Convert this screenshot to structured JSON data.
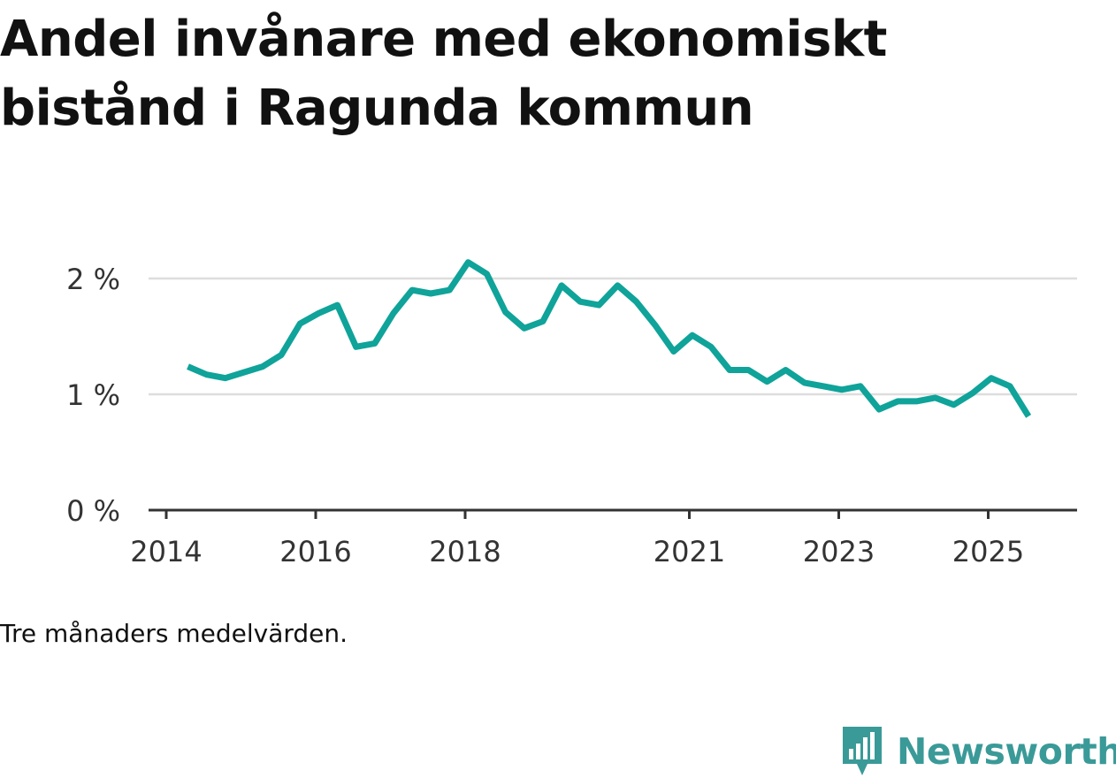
{
  "title": "Andel invånare med ekonomiskt bistånd i Ragunda kommun",
  "note": "Tre månaders medelvärden.",
  "brand": {
    "name": "Newsworthy",
    "icon": "newsworthy-logo-icon",
    "color": "#3a9a98"
  },
  "colors": {
    "line": "#0fa39a",
    "grid": "#dddddd",
    "axis": "#333333"
  },
  "chart_data": {
    "type": "line",
    "title": "Andel invånare med ekonomiskt bistånd i Ragunda kommun",
    "xlabel": "",
    "ylabel": "",
    "xlim": [
      2014,
      2026.17
    ],
    "ylim": [
      0,
      2
    ],
    "yticks": [
      {
        "value": 0,
        "label": "0 %"
      },
      {
        "value": 1,
        "label": "1 %"
      },
      {
        "value": 2,
        "label": "2 %"
      }
    ],
    "xticks": [
      {
        "value": 2014,
        "label": "2014"
      },
      {
        "value": 2016,
        "label": "2016"
      },
      {
        "value": 2018,
        "label": "2018"
      },
      {
        "value": 2021,
        "label": "2021"
      },
      {
        "value": 2023,
        "label": "2023"
      },
      {
        "value": 2025,
        "label": "2025"
      }
    ],
    "series": [
      {
        "name": "Andel invånare med ekonomiskt bistånd",
        "x": [
          2014.29,
          2014.54,
          2014.79,
          2015.04,
          2015.29,
          2015.54,
          2015.79,
          2016.04,
          2016.29,
          2016.54,
          2016.79,
          2017.04,
          2017.29,
          2017.54,
          2017.79,
          2018.04,
          2018.29,
          2018.54,
          2018.79,
          2019.04,
          2019.29,
          2019.54,
          2019.79,
          2020.04,
          2020.29,
          2020.54,
          2020.79,
          2021.04,
          2021.29,
          2021.54,
          2021.79,
          2022.04,
          2022.29,
          2022.54,
          2022.79,
          2023.04,
          2023.29,
          2023.54,
          2023.79,
          2024.04,
          2024.29,
          2024.54,
          2024.79,
          2025.04,
          2025.29,
          2025.54
        ],
        "values": [
          1.24,
          1.17,
          1.14,
          1.19,
          1.24,
          1.34,
          1.61,
          1.7,
          1.77,
          1.41,
          1.44,
          1.7,
          1.9,
          1.87,
          1.9,
          2.14,
          2.04,
          1.71,
          1.57,
          1.63,
          1.94,
          1.8,
          1.77,
          1.94,
          1.8,
          1.6,
          1.37,
          1.51,
          1.41,
          1.21,
          1.21,
          1.11,
          1.21,
          1.1,
          1.07,
          1.04,
          1.07,
          0.87,
          0.94,
          0.94,
          0.97,
          0.91,
          1.01,
          1.14,
          1.07,
          0.81
        ]
      }
    ]
  }
}
